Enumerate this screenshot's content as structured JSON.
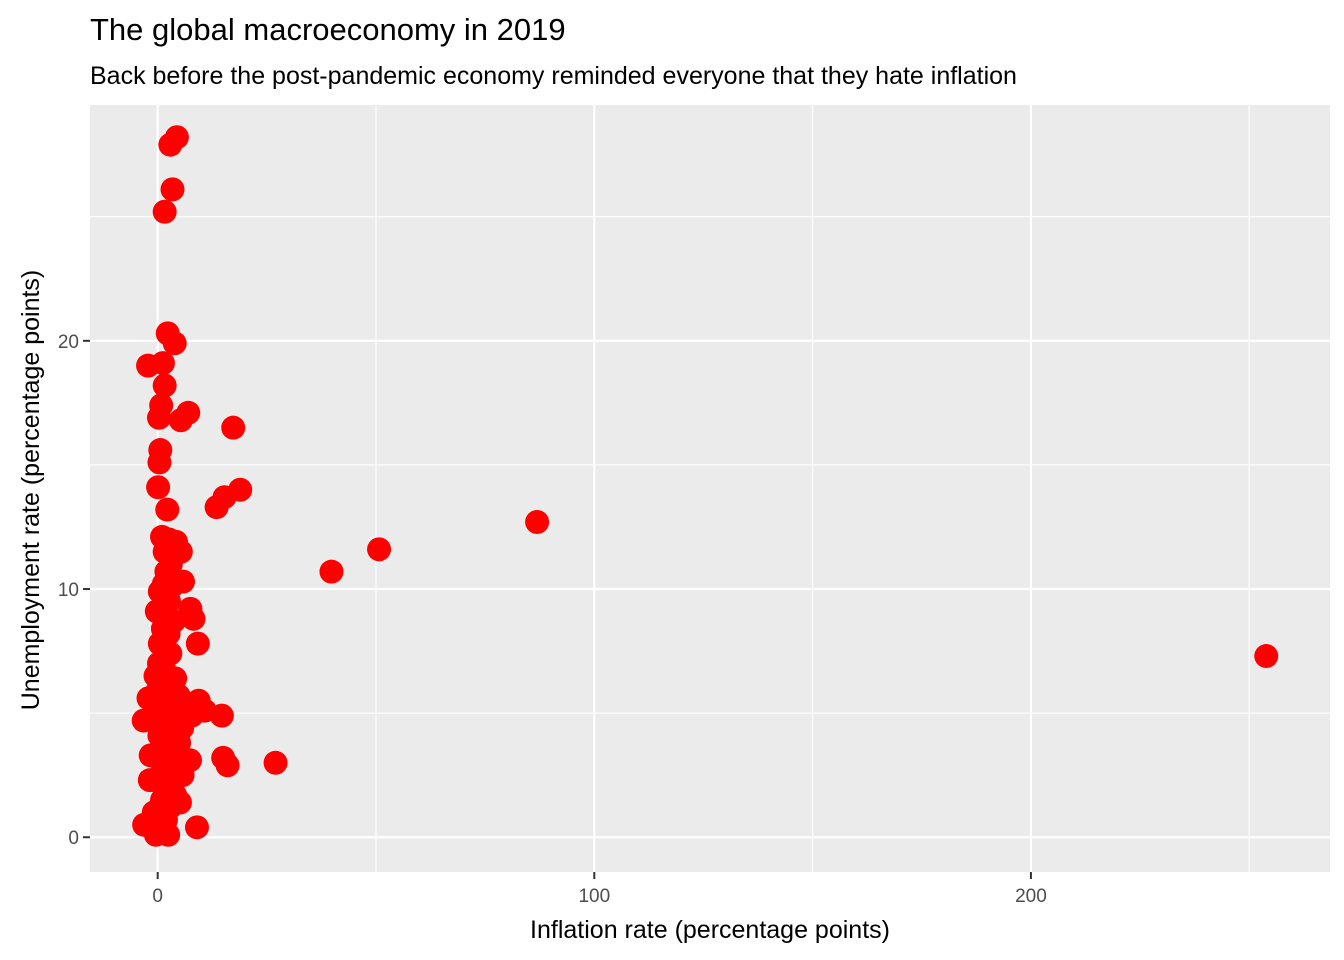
{
  "chart_data": {
    "type": "scatter",
    "title": "The global macroeconomy in 2019",
    "subtitle": "Back before the post-pandemic economy reminded everyone that they hate inflation",
    "xlabel": "Inflation rate (percentage points)",
    "ylabel": "Unemployment rate (percentage points)",
    "xlim": [
      -15.5,
      268.5
    ],
    "ylim": [
      -1.4,
      29.5
    ],
    "x_ticks": [
      0,
      100,
      200
    ],
    "x_minor": [
      50,
      150,
      250
    ],
    "y_ticks": [
      0,
      10,
      20
    ],
    "y_minor": [
      5,
      15,
      25
    ],
    "grid": true,
    "colors": {
      "point": "#ff0000",
      "panel": "#ebebeb",
      "grid": "#ffffff"
    },
    "points": [
      {
        "x": 4.4,
        "y": 28.2
      },
      {
        "x": 2.9,
        "y": 27.9
      },
      {
        "x": 3.4,
        "y": 26.1
      },
      {
        "x": 1.6,
        "y": 25.2
      },
      {
        "x": 2.3,
        "y": 20.3
      },
      {
        "x": 3.9,
        "y": 19.9
      },
      {
        "x": -2.2,
        "y": 19.0
      },
      {
        "x": 1.2,
        "y": 19.1
      },
      {
        "x": 1.6,
        "y": 18.2
      },
      {
        "x": 0.8,
        "y": 17.4
      },
      {
        "x": 7.0,
        "y": 17.1
      },
      {
        "x": 0.3,
        "y": 16.9
      },
      {
        "x": 5.3,
        "y": 16.8
      },
      {
        "x": 17.3,
        "y": 16.5
      },
      {
        "x": 0.6,
        "y": 15.6
      },
      {
        "x": 0.4,
        "y": 15.1
      },
      {
        "x": 0.1,
        "y": 14.1
      },
      {
        "x": 18.9,
        "y": 14.0
      },
      {
        "x": 15.3,
        "y": 13.7
      },
      {
        "x": 13.5,
        "y": 13.3
      },
      {
        "x": 2.2,
        "y": 13.2
      },
      {
        "x": 86.9,
        "y": 12.7
      },
      {
        "x": 1.0,
        "y": 12.1
      },
      {
        "x": 2.5,
        "y": 12.0
      },
      {
        "x": 4.2,
        "y": 11.9
      },
      {
        "x": 50.7,
        "y": 11.6
      },
      {
        "x": 1.6,
        "y": 11.5
      },
      {
        "x": 5.3,
        "y": 11.5
      },
      {
        "x": 3.0,
        "y": 11.0
      },
      {
        "x": 2.0,
        "y": 10.7
      },
      {
        "x": 39.8,
        "y": 10.7
      },
      {
        "x": 5.8,
        "y": 10.3
      },
      {
        "x": 1.4,
        "y": 10.2
      },
      {
        "x": 3.2,
        "y": 10.1
      },
      {
        "x": 0.5,
        "y": 9.9
      },
      {
        "x": 2.6,
        "y": 9.5
      },
      {
        "x": 7.5,
        "y": 9.2
      },
      {
        "x": -0.2,
        "y": 9.1
      },
      {
        "x": 1.8,
        "y": 8.9
      },
      {
        "x": 3.7,
        "y": 8.7
      },
      {
        "x": 8.2,
        "y": 8.8
      },
      {
        "x": 1.2,
        "y": 8.4
      },
      {
        "x": 2.5,
        "y": 8.2
      },
      {
        "x": 9.2,
        "y": 7.8
      },
      {
        "x": 0.5,
        "y": 7.8
      },
      {
        "x": 2.9,
        "y": 7.4
      },
      {
        "x": 1.7,
        "y": 7.5
      },
      {
        "x": 253.9,
        "y": 7.3
      },
      {
        "x": 0.3,
        "y": 7.0
      },
      {
        "x": 1.4,
        "y": 6.8
      },
      {
        "x": -0.5,
        "y": 6.5
      },
      {
        "x": 4.0,
        "y": 6.4
      },
      {
        "x": 0.9,
        "y": 6.3
      },
      {
        "x": 2.4,
        "y": 6.1
      },
      {
        "x": 0.0,
        "y": 5.9
      },
      {
        "x": 3.4,
        "y": 5.8
      },
      {
        "x": -2.1,
        "y": 5.6
      },
      {
        "x": 4.8,
        "y": 5.7
      },
      {
        "x": 1.3,
        "y": 5.6
      },
      {
        "x": 9.4,
        "y": 5.5
      },
      {
        "x": 2.6,
        "y": 5.4
      },
      {
        "x": 0.6,
        "y": 5.3
      },
      {
        "x": 6.0,
        "y": 5.2
      },
      {
        "x": 3.9,
        "y": 5.1
      },
      {
        "x": 10.8,
        "y": 5.1
      },
      {
        "x": 1.8,
        "y": 5.0
      },
      {
        "x": 7.8,
        "y": 4.9
      },
      {
        "x": 14.7,
        "y": 4.9
      },
      {
        "x": 0.2,
        "y": 4.8
      },
      {
        "x": 4.4,
        "y": 4.8
      },
      {
        "x": -3.2,
        "y": 4.7
      },
      {
        "x": 2.7,
        "y": 4.6
      },
      {
        "x": 1.1,
        "y": 4.5
      },
      {
        "x": 5.6,
        "y": 4.4
      },
      {
        "x": 3.1,
        "y": 4.2
      },
      {
        "x": 0.4,
        "y": 4.1
      },
      {
        "x": 2.0,
        "y": 3.9
      },
      {
        "x": 4.9,
        "y": 3.8
      },
      {
        "x": 1.5,
        "y": 3.6
      },
      {
        "x": 3.8,
        "y": 3.4
      },
      {
        "x": -1.6,
        "y": 3.3
      },
      {
        "x": 0.7,
        "y": 3.2
      },
      {
        "x": 15.0,
        "y": 3.2
      },
      {
        "x": 7.4,
        "y": 3.1
      },
      {
        "x": 27.0,
        "y": 3.0
      },
      {
        "x": 2.4,
        "y": 3.0
      },
      {
        "x": 16.0,
        "y": 2.9
      },
      {
        "x": 4.5,
        "y": 2.8
      },
      {
        "x": 1.2,
        "y": 2.7
      },
      {
        "x": 5.7,
        "y": 2.5
      },
      {
        "x": 3.2,
        "y": 2.4
      },
      {
        "x": -1.8,
        "y": 2.3
      },
      {
        "x": 0.6,
        "y": 2.2
      },
      {
        "x": 2.1,
        "y": 2.0
      },
      {
        "x": 4.0,
        "y": 1.7
      },
      {
        "x": 5.1,
        "y": 1.4
      },
      {
        "x": 1.0,
        "y": 1.5
      },
      {
        "x": 2.8,
        "y": 1.2
      },
      {
        "x": -0.9,
        "y": 1.0
      },
      {
        "x": 1.9,
        "y": 0.7
      },
      {
        "x": -3.1,
        "y": 0.5
      },
      {
        "x": 0.5,
        "y": 0.4
      },
      {
        "x": 9.0,
        "y": 0.4
      },
      {
        "x": -0.4,
        "y": 0.1
      },
      {
        "x": 2.4,
        "y": 0.1
      }
    ]
  }
}
